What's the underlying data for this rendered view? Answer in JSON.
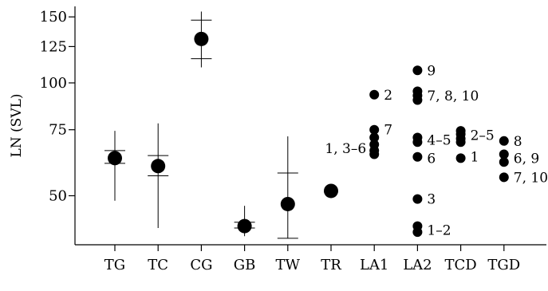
{
  "chart_data": {
    "type": "scatter",
    "title": "",
    "xlabel": "",
    "ylabel": "LN (SVL)",
    "y_scale": "log",
    "ylim": [
      37,
      160
    ],
    "grid": false,
    "legend": "none",
    "categories": [
      "TG",
      "TC",
      "CG",
      "GB",
      "TW",
      "TR",
      "LA1",
      "LA2",
      "TCD",
      "TGD"
    ],
    "y_ticks": [
      50,
      75,
      100,
      125,
      150
    ],
    "summary": [
      {
        "category": "TG",
        "mean": 63,
        "ci": [
          61,
          66
        ],
        "range": [
          48.5,
          74.5
        ]
      },
      {
        "category": "TC",
        "mean": 60,
        "ci": [
          56.5,
          64
        ],
        "range": [
          41,
          78
        ]
      },
      {
        "category": "CG",
        "mean": 131,
        "ci": [
          116,
          147
        ],
        "range": [
          110,
          155
        ]
      },
      {
        "category": "GB",
        "mean": 41.5,
        "ci": [
          41,
          42.5
        ],
        "range": [
          39,
          47
        ]
      },
      {
        "category": "TW",
        "mean": 47.5,
        "ci": [
          38.5,
          57.5
        ],
        "range": [
          38.5,
          72
        ]
      },
      {
        "category": "TR",
        "mean": 51.5
      }
    ],
    "individuals": [
      {
        "category": "LA1",
        "values": [
          93,
          75,
          71.5,
          68.5,
          66,
          64.5
        ]
      },
      {
        "category": "LA2",
        "values": [
          108,
          95,
          92.5,
          90,
          71.5,
          69.5,
          63.5,
          49,
          41.5,
          40
        ]
      },
      {
        "category": "TCD",
        "values": [
          74.5,
          73,
          71,
          69.5,
          63
        ]
      },
      {
        "category": "TGD",
        "values": [
          70,
          64.5,
          61.5,
          56
        ]
      }
    ],
    "annotations": [
      {
        "category": "LA1",
        "text": "2",
        "y": 93,
        "side": "right"
      },
      {
        "category": "LA1",
        "text": "7",
        "y": 75,
        "side": "right"
      },
      {
        "category": "LA1",
        "text": "1, 3–6",
        "y": 67,
        "side": "left"
      },
      {
        "category": "LA2",
        "text": "9",
        "y": 108,
        "side": "right"
      },
      {
        "category": "LA2",
        "text": "7, 8, 10",
        "y": 92.5,
        "side": "right"
      },
      {
        "category": "LA2",
        "text": "4–5",
        "y": 70.5,
        "side": "right"
      },
      {
        "category": "LA2",
        "text": "6",
        "y": 63,
        "side": "right"
      },
      {
        "category": "LA2",
        "text": "3",
        "y": 49,
        "side": "right"
      },
      {
        "category": "LA2",
        "text": "1–2",
        "y": 40.5,
        "side": "right"
      },
      {
        "category": "TCD",
        "text": "2–5",
        "y": 72.5,
        "side": "right"
      },
      {
        "category": "TCD",
        "text": "1",
        "y": 63.5,
        "side": "right"
      },
      {
        "category": "TGD",
        "text": "8",
        "y": 70,
        "side": "right"
      },
      {
        "category": "TGD",
        "text": "6, 9",
        "y": 63,
        "side": "right"
      },
      {
        "category": "TGD",
        "text": "7, 10",
        "y": 56,
        "side": "right"
      }
    ]
  }
}
